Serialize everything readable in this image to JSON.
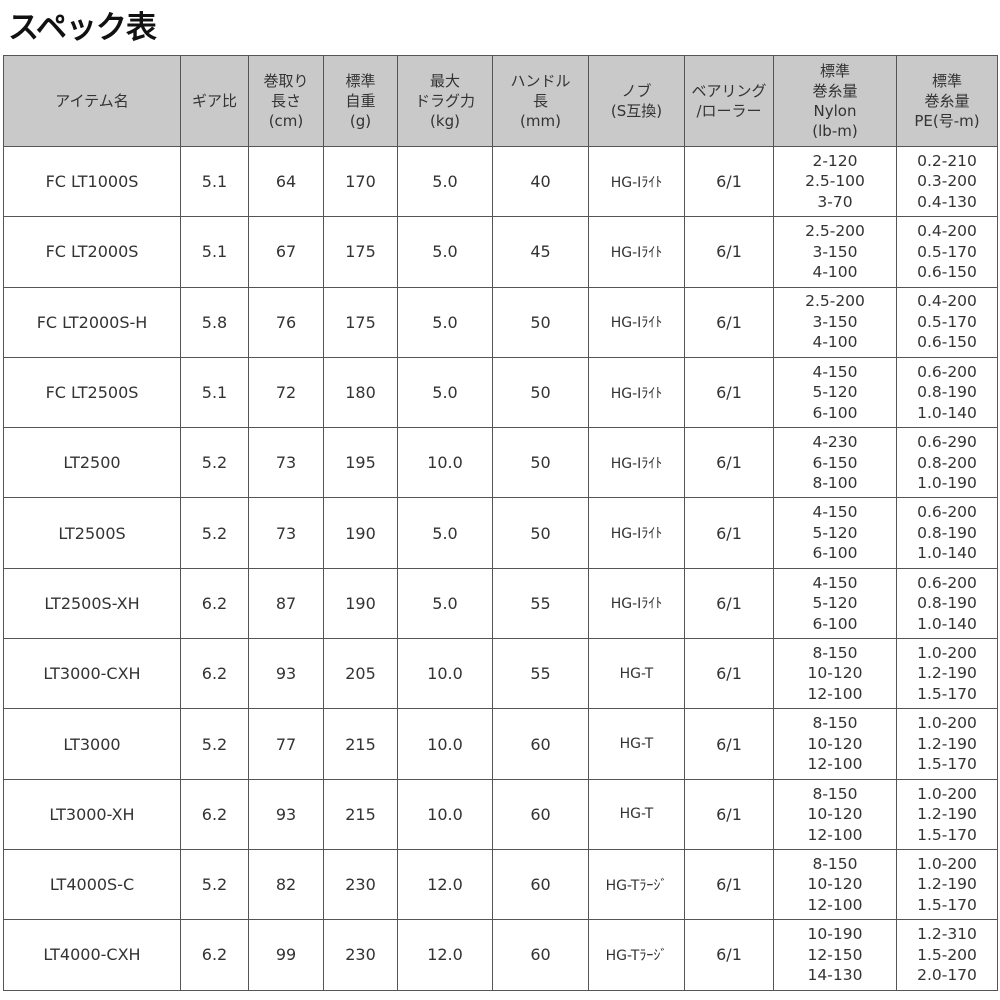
{
  "title": "スペック表",
  "headers": [
    [
      "アイテム名"
    ],
    [
      "ギア比"
    ],
    [
      "巻取り",
      "長さ",
      "(cm)"
    ],
    [
      "標準",
      "自重",
      "(g)"
    ],
    [
      "最大",
      "ドラグ力",
      "(kg)"
    ],
    [
      "ハンドル",
      "長",
      "(mm)"
    ],
    [
      "ノブ",
      "(S互換)"
    ],
    [
      "ベアリング",
      "/ローラー"
    ],
    [
      "標準",
      "巻糸量",
      "Nylon",
      "(lb-m)"
    ],
    [
      "標準",
      "巻糸量",
      "PE(号-m)"
    ]
  ],
  "rows": [
    {
      "name": "FC LT1000S",
      "gear": "5.1",
      "retrieve": "64",
      "weight": "170",
      "drag": "5.0",
      "handle": "40",
      "knob": "HG-Iﾗｲﾄ",
      "bearing": "6/1",
      "nylon": [
        "2-120",
        "2.5-100",
        "3-70"
      ],
      "pe": [
        "0.2-210",
        "0.3-200",
        "0.4-130"
      ]
    },
    {
      "name": "FC LT2000S",
      "gear": "5.1",
      "retrieve": "67",
      "weight": "175",
      "drag": "5.0",
      "handle": "45",
      "knob": "HG-Iﾗｲﾄ",
      "bearing": "6/1",
      "nylon": [
        "2.5-200",
        "3-150",
        "4-100"
      ],
      "pe": [
        "0.4-200",
        "0.5-170",
        "0.6-150"
      ]
    },
    {
      "name": "FC LT2000S-H",
      "gear": "5.8",
      "retrieve": "76",
      "weight": "175",
      "drag": "5.0",
      "handle": "50",
      "knob": "HG-Iﾗｲﾄ",
      "bearing": "6/1",
      "nylon": [
        "2.5-200",
        "3-150",
        "4-100"
      ],
      "pe": [
        "0.4-200",
        "0.5-170",
        "0.6-150"
      ]
    },
    {
      "name": "FC LT2500S",
      "gear": "5.1",
      "retrieve": "72",
      "weight": "180",
      "drag": "5.0",
      "handle": "50",
      "knob": "HG-Iﾗｲﾄ",
      "bearing": "6/1",
      "nylon": [
        "4-150",
        "5-120",
        "6-100"
      ],
      "pe": [
        "0.6-200",
        "0.8-190",
        "1.0-140"
      ]
    },
    {
      "name": "LT2500",
      "gear": "5.2",
      "retrieve": "73",
      "weight": "195",
      "drag": "10.0",
      "handle": "50",
      "knob": "HG-Iﾗｲﾄ",
      "bearing": "6/1",
      "nylon": [
        "4-230",
        "6-150",
        "8-100"
      ],
      "pe": [
        "0.6-290",
        "0.8-200",
        "1.0-190"
      ]
    },
    {
      "name": "LT2500S",
      "gear": "5.2",
      "retrieve": "73",
      "weight": "190",
      "drag": "5.0",
      "handle": "50",
      "knob": "HG-Iﾗｲﾄ",
      "bearing": "6/1",
      "nylon": [
        "4-150",
        "5-120",
        "6-100"
      ],
      "pe": [
        "0.6-200",
        "0.8-190",
        "1.0-140"
      ]
    },
    {
      "name": "LT2500S-XH",
      "gear": "6.2",
      "retrieve": "87",
      "weight": "190",
      "drag": "5.0",
      "handle": "55",
      "knob": "HG-Iﾗｲﾄ",
      "bearing": "6/1",
      "nylon": [
        "4-150",
        "5-120",
        "6-100"
      ],
      "pe": [
        "0.6-200",
        "0.8-190",
        "1.0-140"
      ]
    },
    {
      "name": "LT3000-CXH",
      "gear": "6.2",
      "retrieve": "93",
      "weight": "205",
      "drag": "10.0",
      "handle": "55",
      "knob": "HG-T",
      "bearing": "6/1",
      "nylon": [
        "8-150",
        "10-120",
        "12-100"
      ],
      "pe": [
        "1.0-200",
        "1.2-190",
        "1.5-170"
      ]
    },
    {
      "name": "LT3000",
      "gear": "5.2",
      "retrieve": "77",
      "weight": "215",
      "drag": "10.0",
      "handle": "60",
      "knob": "HG-T",
      "bearing": "6/1",
      "nylon": [
        "8-150",
        "10-120",
        "12-100"
      ],
      "pe": [
        "1.0-200",
        "1.2-190",
        "1.5-170"
      ]
    },
    {
      "name": "LT3000-XH",
      "gear": "6.2",
      "retrieve": "93",
      "weight": "215",
      "drag": "10.0",
      "handle": "60",
      "knob": "HG-T",
      "bearing": "6/1",
      "nylon": [
        "8-150",
        "10-120",
        "12-100"
      ],
      "pe": [
        "1.0-200",
        "1.2-190",
        "1.5-170"
      ]
    },
    {
      "name": "LT4000S-C",
      "gear": "5.2",
      "retrieve": "82",
      "weight": "230",
      "drag": "12.0",
      "handle": "60",
      "knob": "HG-Tﾗｰｼﾞ",
      "bearing": "6/1",
      "nylon": [
        "8-150",
        "10-120",
        "12-100"
      ],
      "pe": [
        "1.0-200",
        "1.2-190",
        "1.5-170"
      ]
    },
    {
      "name": "LT4000-CXH",
      "gear": "6.2",
      "retrieve": "99",
      "weight": "230",
      "drag": "12.0",
      "handle": "60",
      "knob": "HG-Tﾗｰｼﾞ",
      "bearing": "6/1",
      "nylon": [
        "10-190",
        "12-150",
        "14-130"
      ],
      "pe": [
        "1.2-310",
        "1.5-200",
        "2.0-170"
      ]
    }
  ],
  "colors": {
    "header_bg": "#c9c9c9",
    "border": "#555555"
  }
}
